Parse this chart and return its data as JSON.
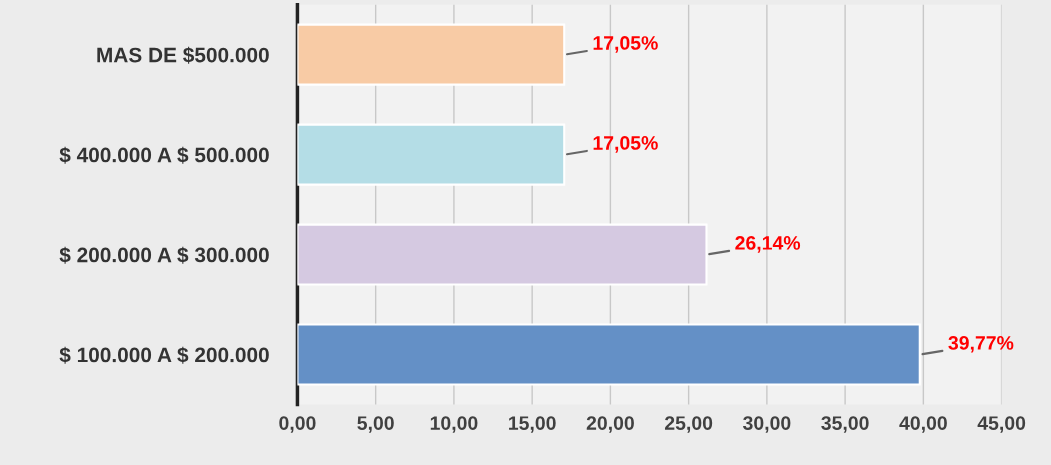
{
  "chart_data": {
    "type": "bar",
    "orientation": "horizontal",
    "categories": [
      "MAS DE $500.000",
      "$ 400.000 A $ 500.000",
      "$ 200.000 A $ 300.000",
      "$ 100.000 A $ 200.000"
    ],
    "values": [
      17.05,
      17.05,
      26.14,
      39.77
    ],
    "colors": [
      "#f8cba5",
      "#b4dde6",
      "#d5c9e1",
      "#6490c6"
    ],
    "value_labels": [
      "17,05%",
      "17,05%",
      "26,14%",
      "39,77%"
    ],
    "xlim": [
      0,
      45
    ],
    "xticks": [
      {
        "value": 0,
        "label": "0,00"
      },
      {
        "value": 5,
        "label": "5,00"
      },
      {
        "value": 10,
        "label": "10,00"
      },
      {
        "value": 15,
        "label": "15,00"
      },
      {
        "value": 20,
        "label": "20,00"
      },
      {
        "value": 25,
        "label": "25,00"
      },
      {
        "value": 30,
        "label": "30,00"
      },
      {
        "value": 35,
        "label": "35,00"
      },
      {
        "value": 40,
        "label": "40,00"
      },
      {
        "value": 45,
        "label": "45,00"
      }
    ],
    "grid": "x",
    "legend": false
  }
}
